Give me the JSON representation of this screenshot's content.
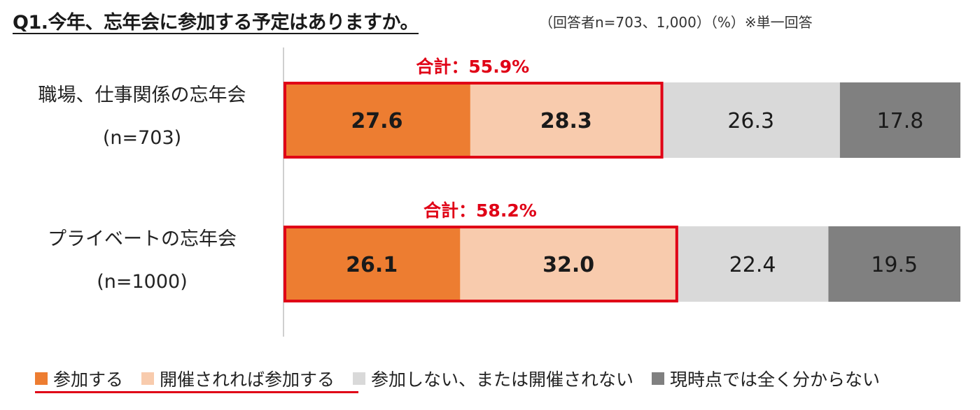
{
  "header": {
    "title": "Q1.今年、忘年会に参加する予定はありますか。",
    "subtitle": "（回答者n=703、1,000）（%）※単一回答"
  },
  "colors": {
    "series": [
      "#ed7d31",
      "#f8cbad",
      "#d9d9d9",
      "#808080"
    ],
    "highlight": "#e00016",
    "axis": "#bfbfbf"
  },
  "chart_data": {
    "type": "bar",
    "orientation": "horizontal",
    "stacked": true,
    "unit": "%",
    "categories": [
      {
        "name": "職場、仕事関係の忘年会",
        "n": "(n=703)"
      },
      {
        "name": "プライベートの忘年会",
        "n": "(n=1000)"
      }
    ],
    "series": [
      {
        "name": "参加する",
        "values": [
          27.6,
          26.1
        ],
        "labels": [
          "27.6",
          "26.1"
        ],
        "bold": true
      },
      {
        "name": "開催されれば参加する",
        "values": [
          28.3,
          32.0
        ],
        "labels": [
          "28.3",
          "32.0"
        ],
        "bold": true
      },
      {
        "name": "参加しない、または開催されない",
        "values": [
          26.3,
          22.4
        ],
        "labels": [
          "26.3",
          "22.4"
        ],
        "bold": false
      },
      {
        "name": "現時点では全く分からない",
        "values": [
          17.8,
          19.5
        ],
        "labels": [
          "17.8",
          "19.5"
        ],
        "bold": false
      }
    ],
    "totals": [
      "合計：55.9%",
      "合計：58.2%"
    ],
    "highlighted_series_count": 2,
    "xlim": [
      0,
      100
    ],
    "legend": "bottom"
  }
}
